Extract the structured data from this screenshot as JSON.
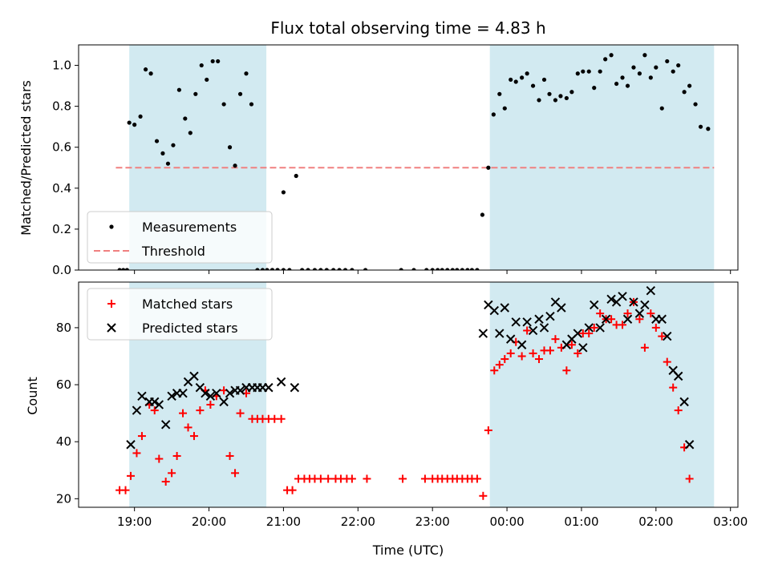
{
  "chart_data": [
    {
      "type": "scatter",
      "panel": "top",
      "title": "Flux total observing time = 4.83 h",
      "xlabel": "",
      "ylabel": "Matched/Predicted stars",
      "xlim": [
        -0.75,
        8.1
      ],
      "ylim": [
        0,
        1.1
      ],
      "x_axis_format": "hour_of_day_starting_19:00",
      "xticks": [
        0,
        1,
        2,
        3,
        4,
        5,
        6,
        7,
        8
      ],
      "yticks": [
        0.0,
        0.2,
        0.4,
        0.6,
        0.8,
        1.0
      ],
      "ytick_labels": [
        "0.0",
        "0.2",
        "0.4",
        "0.6",
        "0.8",
        "1.0"
      ],
      "shaded_spans": [
        [
          -0.07,
          1.77
        ],
        [
          4.77,
          7.78
        ]
      ],
      "shade_color": "#add8e6",
      "legend": {
        "placement": "lower-left",
        "entries": [
          "Measurements",
          "Threshold"
        ]
      },
      "threshold": {
        "name": "Threshold",
        "value": 0.5,
        "x_range": [
          -0.25,
          7.78
        ],
        "color": "#f08080"
      },
      "series": [
        {
          "name": "Measurements",
          "color": "#000000",
          "marker": "dot",
          "points": [
            [
              -0.2,
              0.0
            ],
            [
              -0.15,
              0.0
            ],
            [
              -0.1,
              0.0
            ],
            [
              -0.07,
              0.72
            ],
            [
              0.0,
              0.71
            ],
            [
              0.08,
              0.75
            ],
            [
              0.15,
              0.98
            ],
            [
              0.22,
              0.96
            ],
            [
              0.3,
              0.63
            ],
            [
              0.38,
              0.57
            ],
            [
              0.45,
              0.52
            ],
            [
              0.52,
              0.61
            ],
            [
              0.6,
              0.88
            ],
            [
              0.68,
              0.74
            ],
            [
              0.75,
              0.67
            ],
            [
              0.82,
              0.86
            ],
            [
              0.9,
              1.0
            ],
            [
              0.97,
              0.93
            ],
            [
              1.05,
              1.02
            ],
            [
              1.12,
              1.02
            ],
            [
              1.2,
              0.81
            ],
            [
              1.28,
              0.6
            ],
            [
              1.35,
              0.51
            ],
            [
              1.42,
              0.86
            ],
            [
              1.5,
              0.96
            ],
            [
              1.57,
              0.81
            ],
            [
              1.65,
              0.0
            ],
            [
              1.72,
              0.0
            ],
            [
              1.78,
              0.0
            ],
            [
              1.85,
              0.0
            ],
            [
              1.92,
              0.0
            ],
            [
              1.85,
              0.0
            ],
            [
              1.92,
              0.0
            ],
            [
              2.0,
              0.38
            ],
            [
              2.17,
              0.46
            ],
            [
              2.0,
              0.0
            ],
            [
              2.08,
              0.0
            ],
            [
              2.25,
              0.0
            ],
            [
              2.33,
              0.0
            ],
            [
              2.42,
              0.0
            ],
            [
              2.5,
              0.0
            ],
            [
              2.58,
              0.0
            ],
            [
              2.67,
              0.0
            ],
            [
              2.75,
              0.0
            ],
            [
              2.83,
              0.0
            ],
            [
              2.92,
              0.0
            ],
            [
              3.1,
              0.0
            ],
            [
              3.58,
              0.0
            ],
            [
              3.75,
              0.0
            ],
            [
              3.92,
              0.0
            ],
            [
              4.0,
              0.0
            ],
            [
              4.07,
              0.0
            ],
            [
              4.13,
              0.0
            ],
            [
              4.2,
              0.0
            ],
            [
              4.27,
              0.0
            ],
            [
              4.33,
              0.0
            ],
            [
              4.4,
              0.0
            ],
            [
              4.47,
              0.0
            ],
            [
              4.53,
              0.0
            ],
            [
              4.6,
              0.0
            ],
            [
              4.67,
              0.27
            ],
            [
              4.75,
              0.5
            ],
            [
              4.82,
              0.76
            ],
            [
              4.9,
              0.86
            ],
            [
              4.97,
              0.79
            ],
            [
              5.05,
              0.93
            ],
            [
              5.12,
              0.92
            ],
            [
              5.2,
              0.94
            ],
            [
              5.27,
              0.96
            ],
            [
              5.35,
              0.9
            ],
            [
              5.43,
              0.83
            ],
            [
              5.5,
              0.93
            ],
            [
              5.57,
              0.86
            ],
            [
              5.65,
              0.83
            ],
            [
              5.72,
              0.85
            ],
            [
              5.8,
              0.84
            ],
            [
              5.87,
              0.87
            ],
            [
              5.95,
              0.96
            ],
            [
              6.02,
              0.97
            ],
            [
              6.1,
              0.97
            ],
            [
              6.17,
              0.89
            ],
            [
              6.25,
              0.97
            ],
            [
              6.32,
              1.03
            ],
            [
              6.4,
              1.05
            ],
            [
              6.47,
              0.91
            ],
            [
              6.55,
              0.94
            ],
            [
              6.62,
              0.9
            ],
            [
              6.7,
              0.99
            ],
            [
              6.78,
              0.96
            ],
            [
              6.85,
              1.05
            ],
            [
              6.93,
              0.94
            ],
            [
              7.0,
              0.99
            ],
            [
              7.08,
              0.79
            ],
            [
              7.15,
              1.02
            ],
            [
              7.23,
              0.97
            ],
            [
              7.3,
              1.0
            ],
            [
              7.38,
              0.87
            ],
            [
              7.45,
              0.9
            ],
            [
              7.53,
              0.81
            ],
            [
              7.6,
              0.7
            ],
            [
              7.7,
              0.69
            ]
          ]
        }
      ]
    },
    {
      "type": "scatter",
      "panel": "bottom",
      "title": "",
      "xlabel": "Time (UTC)",
      "ylabel": "Count",
      "xlim": [
        -0.75,
        8.1
      ],
      "ylim": [
        17,
        96
      ],
      "x_axis_format": "hour_of_day_starting_19:00",
      "xticks": [
        0,
        1,
        2,
        3,
        4,
        5,
        6,
        7,
        8
      ],
      "xtick_labels": [
        "19:00",
        "20:00",
        "21:00",
        "22:00",
        "23:00",
        "00:00",
        "01:00",
        "02:00",
        "03:00"
      ],
      "yticks": [
        20,
        40,
        60,
        80
      ],
      "ytick_labels": [
        "20",
        "40",
        "60",
        "80"
      ],
      "shaded_spans": [
        [
          -0.07,
          1.77
        ],
        [
          4.77,
          7.78
        ]
      ],
      "shade_color": "#add8e6",
      "legend": {
        "placement": "upper-left",
        "entries": [
          "Matched stars",
          "Predicted stars"
        ]
      },
      "series": [
        {
          "name": "Matched stars",
          "color": "#ff0000",
          "marker": "plus",
          "points": [
            [
              -0.2,
              23
            ],
            [
              -0.12,
              23
            ],
            [
              -0.05,
              28
            ],
            [
              0.03,
              36
            ],
            [
              0.1,
              42
            ],
            [
              0.2,
              53
            ],
            [
              0.27,
              51
            ],
            [
              0.33,
              34
            ],
            [
              0.42,
              26
            ],
            [
              0.5,
              29
            ],
            [
              0.57,
              35
            ],
            [
              0.65,
              50
            ],
            [
              0.72,
              45
            ],
            [
              0.8,
              42
            ],
            [
              0.88,
              51
            ],
            [
              0.95,
              58
            ],
            [
              1.02,
              53
            ],
            [
              1.1,
              56
            ],
            [
              1.2,
              58
            ],
            [
              1.28,
              35
            ],
            [
              1.35,
              29
            ],
            [
              1.42,
              50
            ],
            [
              1.5,
              57
            ],
            [
              1.58,
              48
            ],
            [
              1.65,
              48
            ],
            [
              1.72,
              48
            ],
            [
              1.8,
              48
            ],
            [
              1.88,
              48
            ],
            [
              1.97,
              48
            ],
            [
              2.05,
              23
            ],
            [
              2.12,
              23
            ],
            [
              2.2,
              27
            ],
            [
              2.28,
              27
            ],
            [
              2.35,
              27
            ],
            [
              2.42,
              27
            ],
            [
              2.5,
              27
            ],
            [
              2.6,
              27
            ],
            [
              2.7,
              27
            ],
            [
              2.77,
              27
            ],
            [
              2.85,
              27
            ],
            [
              2.92,
              27
            ],
            [
              3.12,
              27
            ],
            [
              3.6,
              27
            ],
            [
              3.9,
              27
            ],
            [
              4.0,
              27
            ],
            [
              4.07,
              27
            ],
            [
              4.13,
              27
            ],
            [
              4.2,
              27
            ],
            [
              4.27,
              27
            ],
            [
              4.33,
              27
            ],
            [
              4.4,
              27
            ],
            [
              4.47,
              27
            ],
            [
              4.53,
              27
            ],
            [
              4.6,
              27
            ],
            [
              4.68,
              21
            ],
            [
              4.75,
              44
            ],
            [
              4.83,
              65
            ],
            [
              4.9,
              67
            ],
            [
              4.97,
              69
            ],
            [
              5.05,
              71
            ],
            [
              5.12,
              75
            ],
            [
              5.2,
              70
            ],
            [
              5.27,
              79
            ],
            [
              5.35,
              71
            ],
            [
              5.43,
              69
            ],
            [
              5.5,
              72
            ],
            [
              5.58,
              72
            ],
            [
              5.65,
              76
            ],
            [
              5.73,
              73
            ],
            [
              5.8,
              65
            ],
            [
              5.87,
              74
            ],
            [
              5.95,
              71
            ],
            [
              6.02,
              78
            ],
            [
              6.1,
              78
            ],
            [
              6.17,
              80
            ],
            [
              6.25,
              85
            ],
            [
              6.33,
              83
            ],
            [
              6.4,
              83
            ],
            [
              6.47,
              81
            ],
            [
              6.55,
              81
            ],
            [
              6.62,
              85
            ],
            [
              6.7,
              89
            ],
            [
              6.78,
              83
            ],
            [
              6.85,
              73
            ],
            [
              6.93,
              85
            ],
            [
              7.0,
              80
            ],
            [
              7.08,
              77
            ],
            [
              7.15,
              68
            ],
            [
              7.23,
              59
            ],
            [
              7.3,
              51
            ],
            [
              7.38,
              38
            ],
            [
              7.45,
              27
            ]
          ]
        },
        {
          "name": "Predicted stars",
          "color": "#000000",
          "marker": "x",
          "points": [
            [
              -0.05,
              39
            ],
            [
              0.03,
              51
            ],
            [
              0.1,
              56
            ],
            [
              0.2,
              54
            ],
            [
              0.27,
              54
            ],
            [
              0.33,
              53
            ],
            [
              0.42,
              46
            ],
            [
              0.5,
              56
            ],
            [
              0.57,
              57
            ],
            [
              0.65,
              57
            ],
            [
              0.72,
              61
            ],
            [
              0.8,
              63
            ],
            [
              0.88,
              59
            ],
            [
              0.95,
              57
            ],
            [
              1.02,
              56
            ],
            [
              1.1,
              57
            ],
            [
              1.2,
              54
            ],
            [
              1.28,
              57
            ],
            [
              1.35,
              58
            ],
            [
              1.42,
              58
            ],
            [
              1.5,
              59
            ],
            [
              1.58,
              59
            ],
            [
              1.65,
              59
            ],
            [
              1.72,
              59
            ],
            [
              1.8,
              59
            ],
            [
              1.97,
              61
            ],
            [
              2.15,
              59
            ],
            [
              4.68,
              78
            ],
            [
              4.75,
              88
            ],
            [
              4.83,
              86
            ],
            [
              4.9,
              78
            ],
            [
              4.97,
              87
            ],
            [
              5.05,
              76
            ],
            [
              5.12,
              82
            ],
            [
              5.2,
              74
            ],
            [
              5.27,
              82
            ],
            [
              5.35,
              79
            ],
            [
              5.43,
              83
            ],
            [
              5.5,
              80
            ],
            [
              5.58,
              84
            ],
            [
              5.65,
              89
            ],
            [
              5.73,
              87
            ],
            [
              5.8,
              74
            ],
            [
              5.87,
              76
            ],
            [
              5.95,
              78
            ],
            [
              6.02,
              73
            ],
            [
              6.1,
              80
            ],
            [
              6.17,
              88
            ],
            [
              6.25,
              80
            ],
            [
              6.33,
              83
            ],
            [
              6.4,
              90
            ],
            [
              6.47,
              89
            ],
            [
              6.55,
              91
            ],
            [
              6.62,
              83
            ],
            [
              6.7,
              89
            ],
            [
              6.78,
              85
            ],
            [
              6.85,
              88
            ],
            [
              6.93,
              93
            ],
            [
              7.0,
              83
            ],
            [
              7.08,
              83
            ],
            [
              7.15,
              77
            ],
            [
              7.23,
              65
            ],
            [
              7.3,
              63
            ],
            [
              7.38,
              54
            ],
            [
              7.45,
              39
            ]
          ]
        }
      ]
    }
  ]
}
